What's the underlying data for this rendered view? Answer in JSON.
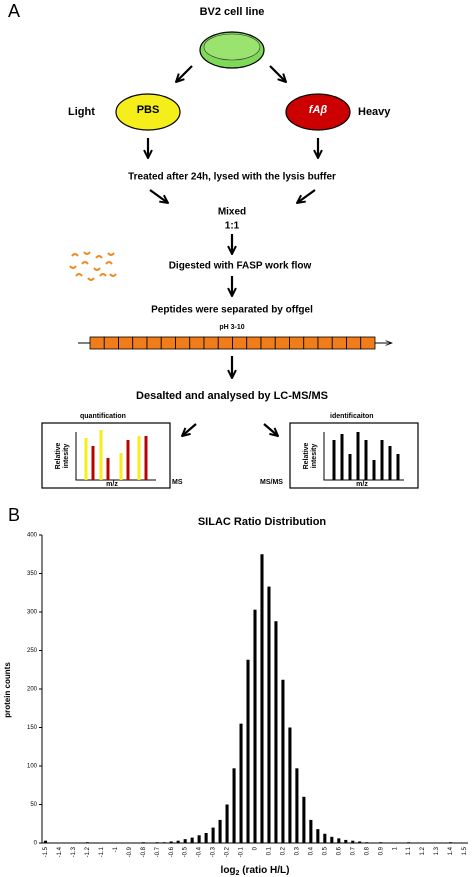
{
  "panel_a": {
    "panel_label": "A",
    "cell_line": "BV2 cell line",
    "light": "Light",
    "pbs": "PBS",
    "fab": "fAβ",
    "heavy": "Heavy",
    "treated": "Treated after 24h, lysed with the lysis buffer",
    "mixed": "Mixed",
    "ratio": "1:1",
    "digested": "Digested with FASP work flow",
    "separated": "Peptides were separated by offgel",
    "ph": "pH 3-10",
    "desalted": "Desalted and analysed by LC-MS/MS",
    "quant": "quantification",
    "ident": "identificaiton",
    "rel1": "Relative",
    "rel2": "intesity",
    "mz": "m/z",
    "ms": "MS",
    "msms": "MS/MS"
  },
  "panel_b_label": "B",
  "chart_data": {
    "type": "bar",
    "title": "SILAC Ratio Distribution",
    "y_label": "protein counts",
    "x_label_main": "log",
    "x_label_sub": "2",
    "x_label_rest": " (ratio H/L)",
    "color": "#000000",
    "categories": [
      "-1.5",
      null,
      "-1.4",
      null,
      "-1.3",
      null,
      "-1.2",
      null,
      "-1.1",
      null,
      "-1",
      null,
      "-0.9",
      null,
      "-0.8",
      null,
      "-0.7",
      null,
      "-0.6",
      null,
      "-0.5",
      null,
      "-0.4",
      null,
      "-0.3",
      null,
      "-0.2",
      null,
      "-0.1",
      null,
      "0",
      null,
      "0.1",
      null,
      "0.2",
      null,
      "0.3",
      null,
      "0.4",
      null,
      "0.5",
      null,
      "0.6",
      null,
      "0.7",
      null,
      "0.8",
      null,
      "0.9",
      null,
      "1",
      null,
      "1.1",
      null,
      "1.2",
      null,
      "1.3",
      null,
      "1.4",
      null,
      "1.5"
    ],
    "values": [
      3,
      0,
      0,
      0,
      0,
      0,
      1,
      0,
      0,
      0,
      0,
      0,
      0,
      0,
      1,
      0,
      1,
      1,
      2,
      3,
      5,
      7,
      10,
      13,
      20,
      30,
      50,
      97,
      155,
      238,
      303,
      375,
      333,
      288,
      212,
      150,
      97,
      60,
      30,
      18,
      12,
      8,
      6,
      4,
      3,
      2,
      1,
      0,
      1,
      0,
      0,
      0,
      1,
      0,
      0,
      0,
      0,
      0,
      1,
      0,
      0
    ],
    "ylim": [
      0,
      400
    ],
    "yticks": [
      0,
      50,
      100,
      150,
      200,
      250,
      300,
      350,
      400
    ],
    "grid": false
  }
}
